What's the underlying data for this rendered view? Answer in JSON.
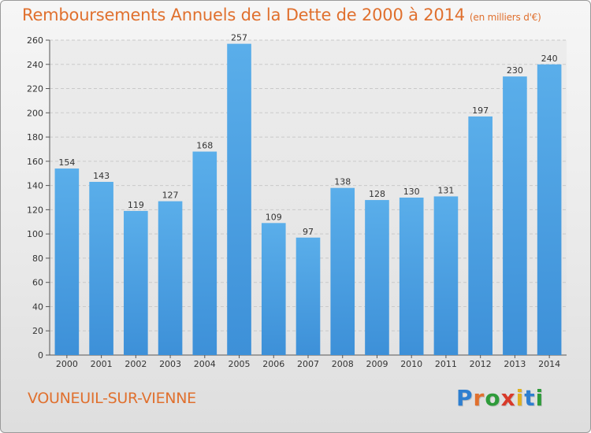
{
  "header": {
    "title": "Remboursements Annuels de la Dette de 2000 à 2014",
    "unit": "(en milliers d'€)"
  },
  "footer": {
    "commune": "VOUNEUIL-SUR-VIENNE",
    "logo_letters": [
      "P",
      "r",
      "o",
      "x",
      "i",
      "t",
      "i"
    ],
    "logo_colors": [
      "#2e7fd0",
      "#e0702e",
      "#2e9b3a",
      "#d83a2a",
      "#e0b020",
      "#2e7fd0",
      "#2e9b3a"
    ]
  },
  "chart_data": {
    "type": "bar",
    "categories": [
      "2000",
      "2001",
      "2002",
      "2003",
      "2004",
      "2005",
      "2006",
      "2007",
      "2008",
      "2009",
      "2010",
      "2011",
      "2012",
      "2013",
      "2014"
    ],
    "values": [
      154,
      143,
      119,
      127,
      168,
      257,
      109,
      97,
      138,
      128,
      130,
      131,
      197,
      230,
      240
    ],
    "ylim": [
      0,
      260
    ],
    "yticks": [
      0,
      20,
      40,
      60,
      80,
      100,
      120,
      140,
      160,
      180,
      200,
      220,
      240,
      260
    ],
    "grid": true,
    "bar_color": "#3d90d8"
  }
}
